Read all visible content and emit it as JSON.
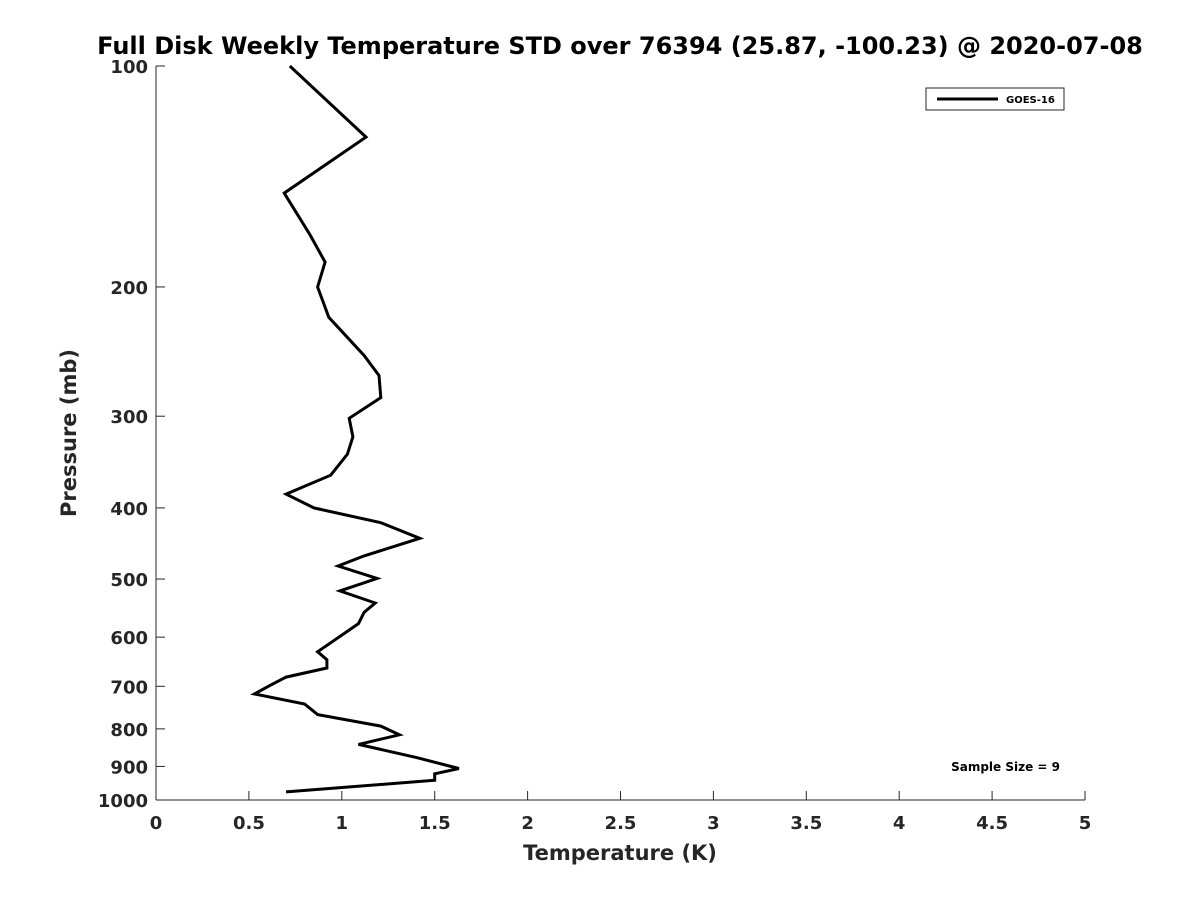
{
  "chart_data": {
    "type": "line",
    "title": "Full Disk Weekly Temperature STD over 76394 (25.87, -100.23) @ 2020-07-08",
    "xlabel": "Temperature (K)",
    "ylabel": "Pressure (mb)",
    "xlim": [
      0,
      5
    ],
    "ylim": [
      100,
      1000
    ],
    "y_scale": "log",
    "y_reversed": true,
    "xticks": [
      0,
      0.5,
      1,
      1.5,
      2,
      2.5,
      3,
      3.5,
      4,
      4.5,
      5
    ],
    "xtick_labels": [
      "0",
      "0.5",
      "1",
      "1.5",
      "2",
      "2.5",
      "3",
      "3.5",
      "4",
      "4.5",
      "5"
    ],
    "yticks": [
      100,
      200,
      300,
      400,
      500,
      600,
      700,
      800,
      900,
      1000
    ],
    "ytick_labels": [
      "100",
      "200",
      "300",
      "400",
      "500",
      "600",
      "700",
      "800",
      "900",
      "1000"
    ],
    "grid": false,
    "legend_position": "top-right",
    "annotation": "Sample Size = 9",
    "series": [
      {
        "name": "GOES-16",
        "color": "#000000",
        "points": [
          [
            0.72,
            100
          ],
          [
            1.13,
            125
          ],
          [
            0.69,
            149
          ],
          [
            0.83,
            170
          ],
          [
            0.91,
            185
          ],
          [
            0.87,
            200
          ],
          [
            0.93,
            220
          ],
          [
            1.12,
            248
          ],
          [
            1.2,
            264
          ],
          [
            1.21,
            283
          ],
          [
            1.04,
            302
          ],
          [
            1.06,
            320
          ],
          [
            1.03,
            338
          ],
          [
            0.94,
            361
          ],
          [
            0.7,
            383
          ],
          [
            0.85,
            400
          ],
          [
            1.21,
            419
          ],
          [
            1.42,
            440
          ],
          [
            1.12,
            465
          ],
          [
            0.98,
            480
          ],
          [
            1.19,
            499
          ],
          [
            0.99,
            519
          ],
          [
            1.18,
            539
          ],
          [
            1.12,
            555
          ],
          [
            1.09,
            575
          ],
          [
            0.98,
            601
          ],
          [
            0.87,
            628
          ],
          [
            0.92,
            644
          ],
          [
            0.92,
            661
          ],
          [
            0.7,
            680
          ],
          [
            0.61,
            699
          ],
          [
            0.53,
            717
          ],
          [
            0.8,
            740
          ],
          [
            0.87,
            765
          ],
          [
            1.21,
            793
          ],
          [
            1.31,
            815
          ],
          [
            1.09,
            840
          ],
          [
            1.4,
            875
          ],
          [
            1.63,
            906
          ],
          [
            1.5,
            921
          ],
          [
            1.5,
            940
          ],
          [
            0.7,
            975
          ]
        ]
      }
    ]
  }
}
